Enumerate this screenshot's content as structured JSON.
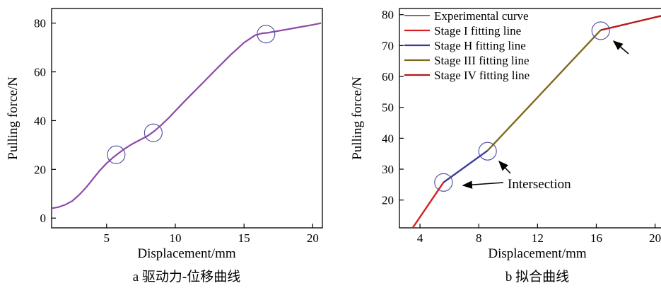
{
  "chart_data": [
    {
      "type": "line",
      "caption": "a 驱动力-位移曲线",
      "xlabel": "Displacement/mm",
      "ylabel": "Pulling force/N",
      "xlim": [
        1,
        20.7
      ],
      "ylim": [
        -4,
        86
      ],
      "xticks": [
        5,
        10,
        15,
        20
      ],
      "yticks": [
        0,
        20,
        40,
        60,
        80
      ],
      "grid": false,
      "series": [
        {
          "color": "#8e4aa8",
          "x": [
            1.0,
            1.5,
            2.0,
            2.5,
            3.0,
            3.5,
            4.0,
            4.5,
            5.0,
            5.5,
            5.8,
            6.2,
            6.6,
            7.0,
            7.5,
            8.0,
            8.5,
            9.0,
            9.5,
            10.0,
            11.0,
            12.0,
            13.0,
            14.0,
            15.0,
            15.8,
            16.3,
            16.7,
            17.2,
            18.0,
            19.0,
            20.0,
            20.6
          ],
          "y": [
            4.0,
            4.5,
            5.5,
            7.0,
            9.5,
            12.5,
            16.0,
            19.5,
            22.5,
            25.0,
            26.3,
            28.0,
            29.5,
            30.8,
            32.3,
            33.8,
            35.8,
            38.3,
            41.0,
            44.0,
            49.8,
            55.5,
            61.2,
            66.8,
            72.0,
            75.0,
            75.8,
            76.0,
            76.5,
            77.3,
            78.3,
            79.3,
            80.0
          ]
        }
      ],
      "annotations": [
        {
          "shape": "circle",
          "x": 5.7,
          "y": 26
        },
        {
          "shape": "circle",
          "x": 8.4,
          "y": 35
        },
        {
          "shape": "circle",
          "x": 16.6,
          "y": 75.5
        }
      ]
    },
    {
      "type": "line",
      "caption": "b 拟合曲线",
      "xlabel": "Displacement/mm",
      "ylabel": "Pulling force/N",
      "xlim": [
        2.6,
        20.5
      ],
      "ylim": [
        11,
        82
      ],
      "xticks": [
        4,
        8,
        12,
        16,
        20
      ],
      "ytick_labels": [
        "20",
        "30",
        "40",
        "50",
        "60",
        "70",
        "80"
      ],
      "yticks": [
        20,
        30,
        40,
        50,
        60,
        70,
        80
      ],
      "grid": false,
      "legend_position": "top-left",
      "series": [
        {
          "name": "Experimental curve",
          "color": "#222222",
          "x": [
            3.5,
            5.6,
            8.6,
            16.3,
            20.5
          ],
          "y": [
            11,
            25.7,
            36,
            75,
            79.7
          ]
        },
        {
          "name": "Stage I fitting line",
          "color": "#d42020",
          "x": [
            3.5,
            5.6
          ],
          "y": [
            11,
            25.7
          ]
        },
        {
          "name": "Stage H fitting line",
          "color": "#3a3c98",
          "x": [
            5.6,
            8.6
          ],
          "y": [
            25.7,
            36
          ]
        },
        {
          "name": "Stage III fitting line",
          "color": "#7f6a1c",
          "x": [
            8.6,
            16.3
          ],
          "y": [
            36,
            75
          ]
        },
        {
          "name": "Stage IV fitting line",
          "color": "#b81a1a",
          "x": [
            16.3,
            20.5
          ],
          "y": [
            75,
            79.7
          ]
        }
      ],
      "annotations": [
        {
          "shape": "circle",
          "x": 5.6,
          "y": 25.7
        },
        {
          "shape": "circle",
          "x": 8.6,
          "y": 35.8
        },
        {
          "shape": "circle",
          "x": 16.3,
          "y": 74.8
        },
        {
          "shape": "text",
          "text": "Intersection"
        }
      ]
    }
  ]
}
